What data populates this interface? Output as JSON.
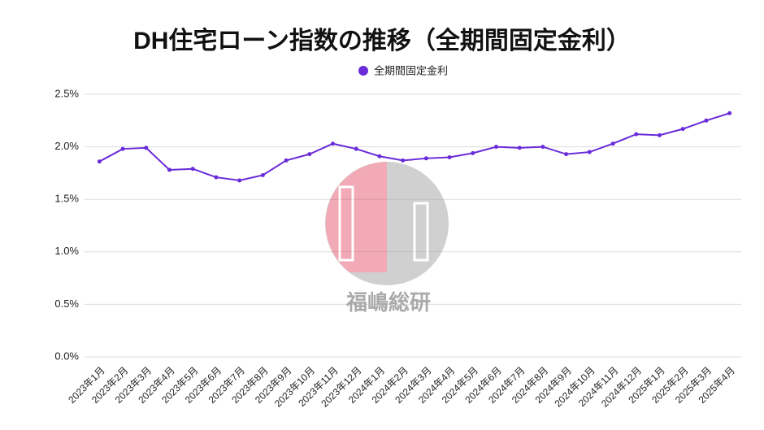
{
  "chart_data": {
    "type": "line",
    "title": "DH住宅ローン指数の推移（全期間固定金利）",
    "watermark": "福嶋総研",
    "categories": [
      "2023年1月",
      "2023年2月",
      "2023年3月",
      "2023年4月",
      "2023年5月",
      "2023年6月",
      "2023年7月",
      "2023年8月",
      "2023年9月",
      "2023年10月",
      "2023年11月",
      "2023年12月",
      "2024年1月",
      "2024年2月",
      "2024年3月",
      "2024年4月",
      "2024年5月",
      "2024年6月",
      "2024年7月",
      "2024年8月",
      "2024年9月",
      "2024年10月",
      "2024年11月",
      "2024年12月",
      "2025年1月",
      "2025年2月",
      "2025年3月",
      "2025年4月"
    ],
    "series": [
      {
        "name": "全期間固定金利",
        "color": "#6a2bd9",
        "values": [
          1.86,
          1.98,
          1.99,
          1.78,
          1.79,
          1.71,
          1.68,
          1.73,
          1.87,
          1.93,
          2.03,
          1.98,
          1.91,
          1.87,
          1.89,
          1.9,
          1.94,
          2.0,
          1.99,
          2.0,
          1.93,
          1.95,
          2.03,
          2.12,
          2.11,
          2.17,
          2.25,
          2.32
        ]
      }
    ],
    "ylim": [
      0,
      2.5
    ],
    "yticks": [
      {
        "value": 0,
        "label": "0.0%"
      },
      {
        "value": 0.5,
        "label": "0.5%"
      },
      {
        "value": 1,
        "label": "1.0%"
      },
      {
        "value": 1.5,
        "label": "1.5%"
      },
      {
        "value": 2,
        "label": "2.0%"
      },
      {
        "value": 2.5,
        "label": "2.5%"
      }
    ],
    "grid": true,
    "legend": "top"
  }
}
